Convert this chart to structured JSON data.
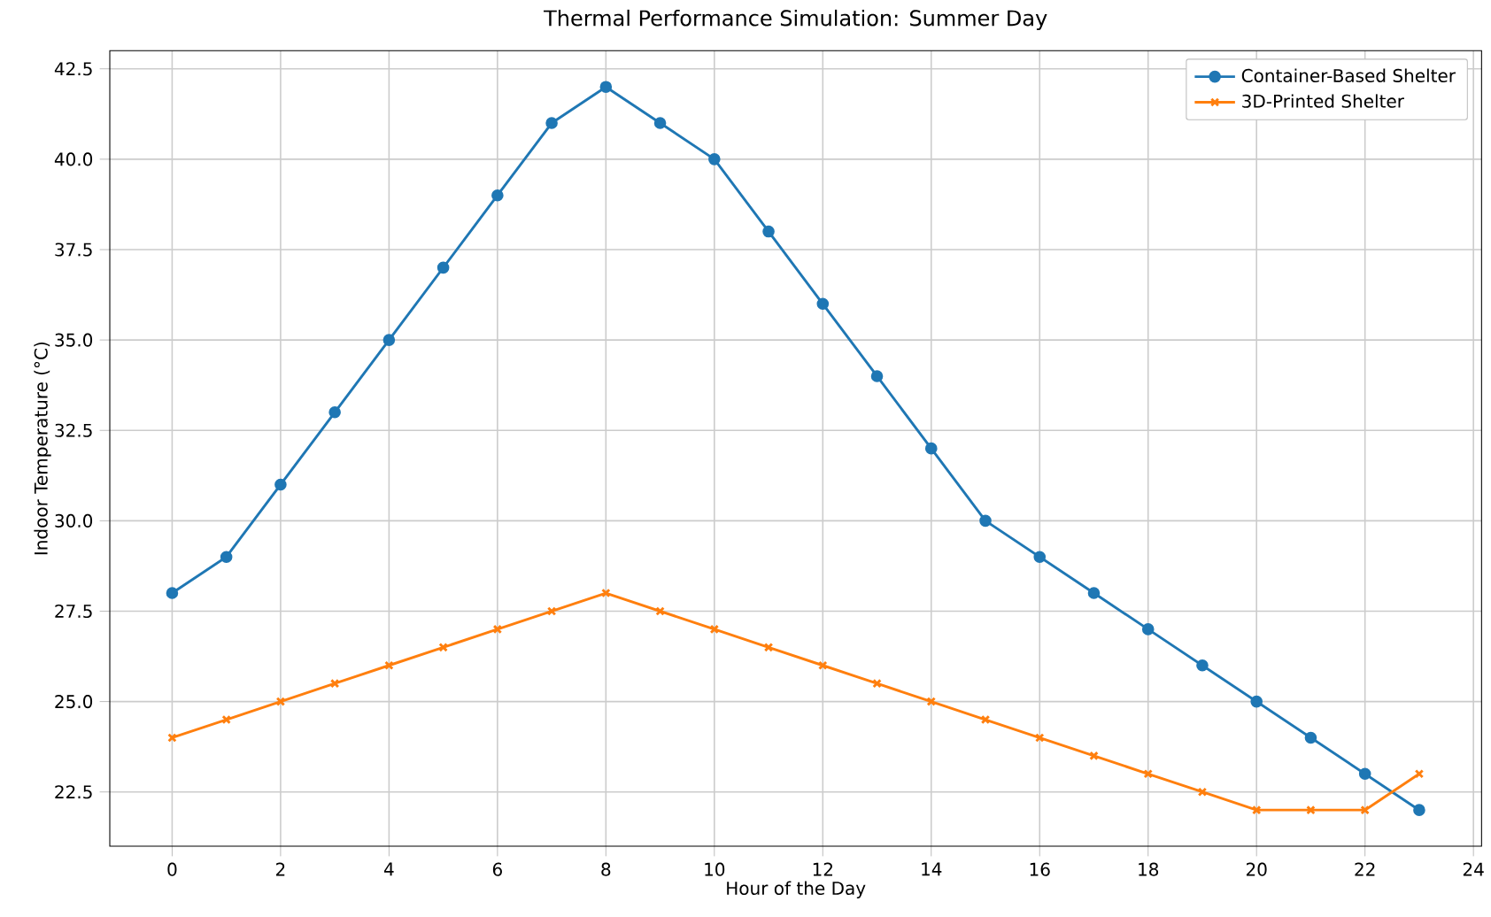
{
  "chart_data": {
    "type": "line",
    "title": "Thermal Performance Simulation: Summer Day",
    "xlabel": "Hour of the Day",
    "ylabel": "Indoor Temperature (°C)",
    "x": [
      0,
      1,
      2,
      3,
      4,
      5,
      6,
      7,
      8,
      9,
      10,
      11,
      12,
      13,
      14,
      15,
      16,
      17,
      18,
      19,
      20,
      21,
      22,
      23
    ],
    "series": [
      {
        "name": "Container-Based Shelter",
        "color": "#1f77b4",
        "marker": "circle",
        "values": [
          28,
          29,
          31,
          33,
          35,
          37,
          39,
          41,
          42,
          41,
          40,
          38,
          36,
          34,
          32,
          30,
          29,
          28,
          27,
          26,
          25,
          24,
          23,
          22
        ]
      },
      {
        "name": "3D-Printed Shelter",
        "color": "#ff7f0e",
        "marker": "cross",
        "values": [
          24,
          24.5,
          25,
          25.5,
          26,
          26.5,
          27,
          27.5,
          28,
          27.5,
          27,
          26.5,
          26,
          25.5,
          25,
          24.5,
          24,
          23.5,
          23,
          22.5,
          22,
          22,
          22,
          23
        ]
      }
    ],
    "xlim": [
      -1.15,
      24.15
    ],
    "ylim": [
      21,
      43
    ],
    "xticks": [
      0,
      2,
      4,
      6,
      8,
      10,
      12,
      14,
      16,
      18,
      20,
      22,
      24
    ],
    "yticks": [
      {
        "value": 22.5,
        "label": "22.5"
      },
      {
        "value": 25,
        "label": "25.0"
      },
      {
        "value": 27.5,
        "label": "27.5"
      },
      {
        "value": 30,
        "label": "30.0"
      },
      {
        "value": 32.5,
        "label": "32.5"
      },
      {
        "value": 35,
        "label": "35.0"
      },
      {
        "value": 37.5,
        "label": "37.5"
      },
      {
        "value": 40,
        "label": "40.0"
      },
      {
        "value": 42.5,
        "label": "42.5"
      }
    ],
    "grid": true,
    "legend": "top right",
    "line_style": "solid"
  }
}
